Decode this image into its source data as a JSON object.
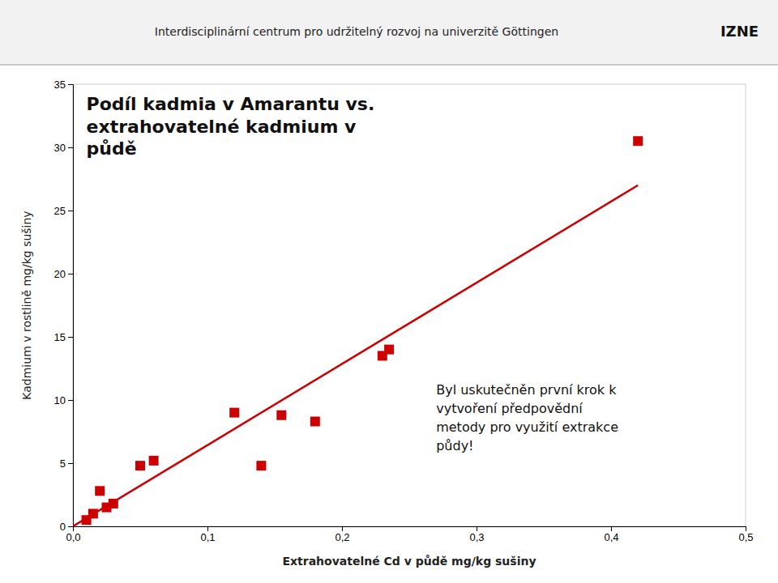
{
  "chart_data": {
    "type": "scatter",
    "title": "Podíl kadmia v Amarantu vs.\nextrahovatelné kadmium v\npůdě",
    "subtitle": "Interdisciplinární centrum pro udržitelný rozvoj na univerzitě Göttingen",
    "x_label": "Extrahovatelné Cd v půdě mg/kg sušiny",
    "y_label": "Kadmium v rostlině mg/kg sušiny",
    "annotations": [
      {
        "text": "Byl uskutečněn první krok k\nvytvoření předpovědní\nmetody pro využití extrakce\npůdy!",
        "x": 0.27,
        "y": 11.5
      },
      {
        "text": "IZNE"
      }
    ],
    "series": [
      {
        "type": "scatter",
        "color": "#cc0000",
        "marker": "square",
        "x": [
          0.01,
          0.015,
          0.02,
          0.025,
          0.03,
          0.05,
          0.06,
          0.12,
          0.14,
          0.155,
          0.18,
          0.23,
          0.235,
          0.42
        ],
        "values": [
          0.5,
          1.0,
          2.8,
          1.5,
          1.8,
          4.8,
          5.2,
          9.0,
          4.8,
          8.8,
          8.3,
          13.5,
          14.0,
          30.5
        ]
      },
      {
        "type": "line",
        "color": "#cc0000",
        "x": [
          0.0,
          0.42
        ],
        "values": [
          0.0,
          27.0
        ]
      }
    ],
    "xlim": [
      0.0,
      0.5
    ],
    "ylim": [
      0,
      35
    ],
    "xticks": [
      {
        "value": 0.0,
        "label": "0,0"
      },
      {
        "value": 0.1,
        "label": "0,1"
      },
      {
        "value": 0.2,
        "label": "0,2"
      },
      {
        "value": 0.3,
        "label": "0,3"
      },
      {
        "value": 0.4,
        "label": "0,4"
      },
      {
        "value": 0.5,
        "label": "0,5"
      }
    ],
    "yticks": [
      0,
      5,
      10,
      15,
      20,
      25,
      30,
      35
    ],
    "grid": false
  }
}
